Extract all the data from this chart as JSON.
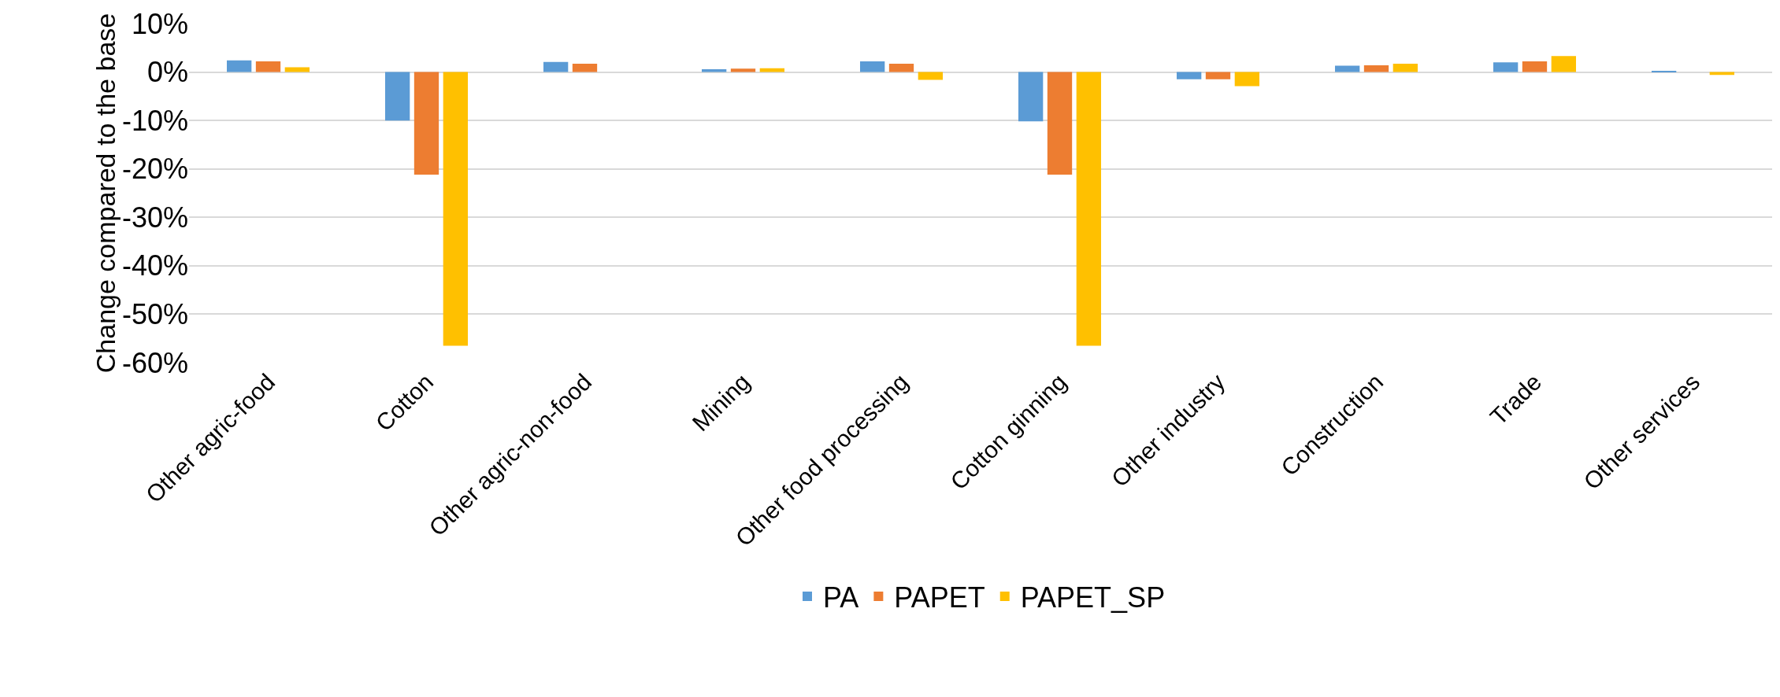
{
  "chart_data": {
    "type": "bar",
    "ylabel": "Change compared to the base",
    "categories": [
      "Other agric-food",
      "Cotton",
      "Other agric-non-food",
      "Mining",
      "Other food processing",
      "Cotton ginning",
      "Other industry",
      "Construction",
      "Trade",
      "Other services"
    ],
    "series": [
      {
        "name": "PA",
        "color": "#5b9bd5",
        "values": [
          2.4,
          -10,
          2.1,
          0.6,
          2.2,
          -10.2,
          -1.5,
          1.3,
          2.0,
          0.1
        ]
      },
      {
        "name": "PAPET",
        "color": "#ed7d31",
        "values": [
          2.2,
          -21.2,
          1.7,
          0.7,
          1.7,
          -21.2,
          -1.5,
          1.4,
          2.2,
          0
        ]
      },
      {
        "name": "PAPET_SP",
        "color": "#ffc000",
        "values": [
          1.0,
          -56.5,
          0,
          0.8,
          -1.6,
          -56.5,
          -2.9,
          1.7,
          3.3,
          -0.6
        ]
      }
    ],
    "ylim": [
      -60,
      10
    ],
    "yticks": [
      {
        "value": 10,
        "label": "10%"
      },
      {
        "value": 0,
        "label": "0%"
      },
      {
        "value": -10,
        "label": "-10%"
      },
      {
        "value": -20,
        "label": "-20%"
      },
      {
        "value": -30,
        "label": "-30%"
      },
      {
        "value": -40,
        "label": "-40%"
      },
      {
        "value": -50,
        "label": "-50%"
      },
      {
        "value": -60,
        "label": "-60%"
      }
    ],
    "grid": "y",
    "legend": "bottom"
  }
}
